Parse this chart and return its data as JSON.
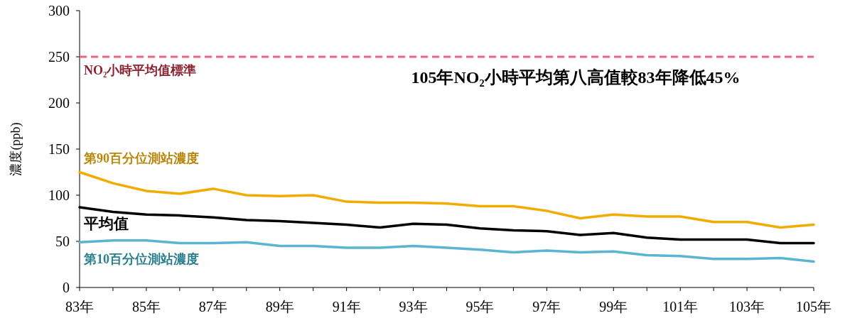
{
  "chart_data": {
    "type": "line",
    "ylabel": "濃度(ppb)",
    "categories": [
      "83年",
      null,
      "85年",
      null,
      "87年",
      null,
      "89年",
      null,
      "91年",
      null,
      "93年",
      null,
      "95年",
      null,
      "97年",
      null,
      "99年",
      null,
      "101年",
      null,
      "103年",
      null,
      "105年"
    ],
    "series": [
      {
        "name": "第90百分位測站濃度",
        "color": "#f2ac00",
        "values": [
          125,
          113,
          104.6,
          101.5,
          107,
          100,
          99,
          100,
          93,
          92,
          92,
          91,
          88,
          88,
          83,
          75,
          79,
          77,
          77,
          71,
          71,
          65,
          68
        ]
      },
      {
        "name": "平均值",
        "color": "#000000",
        "values": [
          87,
          82,
          79,
          78,
          76,
          73,
          72,
          70,
          68,
          65,
          69,
          68,
          64,
          62,
          61,
          57,
          59,
          54,
          52,
          52,
          52,
          48,
          48
        ]
      },
      {
        "name": "第10百分位測站濃度",
        "color": "#5ab4d2",
        "values": [
          49,
          51,
          51,
          48,
          48,
          49,
          45,
          45,
          43,
          43,
          45,
          43,
          41,
          38,
          40,
          38,
          39,
          35,
          34,
          31,
          31,
          32,
          28
        ]
      }
    ],
    "ylim": [
      0,
      300
    ],
    "yticks": [
      0,
      50,
      100,
      150,
      200,
      250,
      300
    ],
    "ref_lines": [
      {
        "axis": "y",
        "value": 250,
        "label": "NO₂小時平均值標準",
        "color": "#e8687a",
        "line_style": "dashed"
      }
    ],
    "annotations": [
      "105年NO₂小時平均第八高值較83年降低45%"
    ],
    "grid": false,
    "legend": false,
    "marker": "none",
    "line_style": "solid"
  }
}
